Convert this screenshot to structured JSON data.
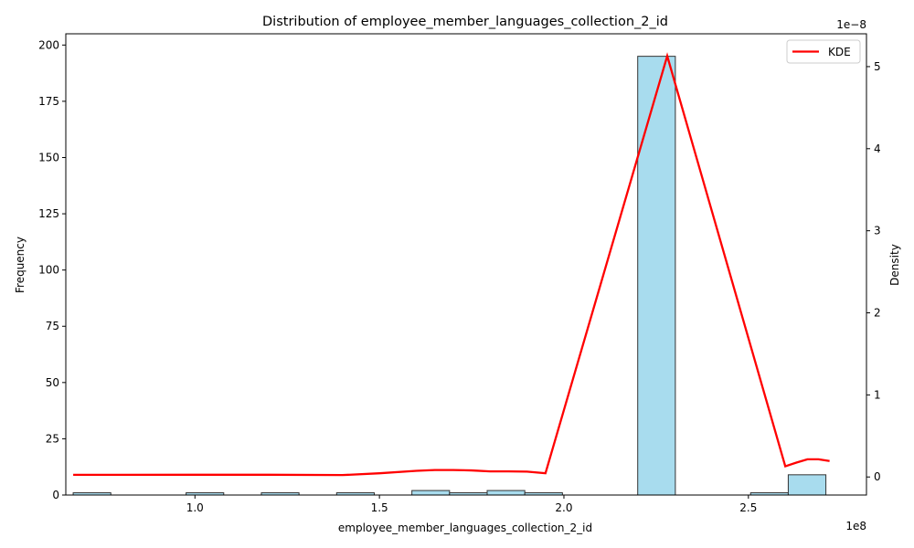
{
  "chart_data": {
    "type": "bar",
    "title": "Distribution of employee_member_languages_collection_2_id",
    "xlabel": "employee_member_languages_collection_2_id",
    "ylabel": "Frequency",
    "y2label": "Density",
    "x_offset_label": "1e8",
    "y2_offset_label": "1e−8",
    "xlim": [
      65000000,
      282000000
    ],
    "ylim": [
      0,
      205
    ],
    "y2lim": [
      -2.2e-09,
      5.4e-08
    ],
    "x_ticks": [
      100000000,
      150000000,
      200000000,
      250000000
    ],
    "x_tick_labels": [
      "1.0",
      "1.5",
      "2.0",
      "2.5"
    ],
    "y_ticks": [
      0,
      25,
      50,
      75,
      100,
      125,
      150,
      175,
      200
    ],
    "y_tick_labels": [
      "0",
      "25",
      "50",
      "75",
      "100",
      "125",
      "150",
      "175",
      "200"
    ],
    "y2_ticks": [
      0,
      1e-08,
      2e-08,
      3e-08,
      4e-08,
      5e-08
    ],
    "y2_tick_labels": [
      "0",
      "1",
      "2",
      "3",
      "4",
      "5"
    ],
    "bin_edges": [
      67000000,
      77200000,
      87400000,
      97600000,
      107800000,
      118000000,
      128200000,
      138400000,
      148600000,
      158800000,
      169000000,
      179200000,
      189400000,
      199600000,
      209800000,
      220000000,
      230200000,
      240400000,
      250600000,
      260800000,
      271000000
    ],
    "bar_values": [
      1,
      0,
      0,
      1,
      0,
      1,
      0,
      1,
      0,
      2,
      1,
      2,
      1,
      0,
      0,
      195,
      0,
      0,
      1,
      9
    ],
    "series": [
      {
        "name": "KDE",
        "color": "#ff0000",
        "x": [
          67000000,
          100000000,
          120000000,
          140000000,
          150000000,
          160000000,
          165000000,
          170000000,
          175000000,
          180000000,
          185000000,
          190000000,
          195000000,
          228000000,
          260000000,
          263000000,
          266000000,
          269000000,
          272000000
        ],
        "y": [
          2.6e-10,
          2.7e-10,
          2.7e-10,
          2.3e-10,
          4.5e-10,
          7.5e-10,
          8.5e-10,
          8.5e-10,
          8e-10,
          6.8e-10,
          6.8e-10,
          6.5e-10,
          4.5e-10,
          5.13e-08,
          1.3e-09,
          1.75e-09,
          2.15e-09,
          2.15e-09,
          1.95e-09
        ]
      }
    ],
    "bar_color": "#a8dcee",
    "bar_edge_color": "#333333",
    "legend_position": "top-right",
    "grid": false
  }
}
